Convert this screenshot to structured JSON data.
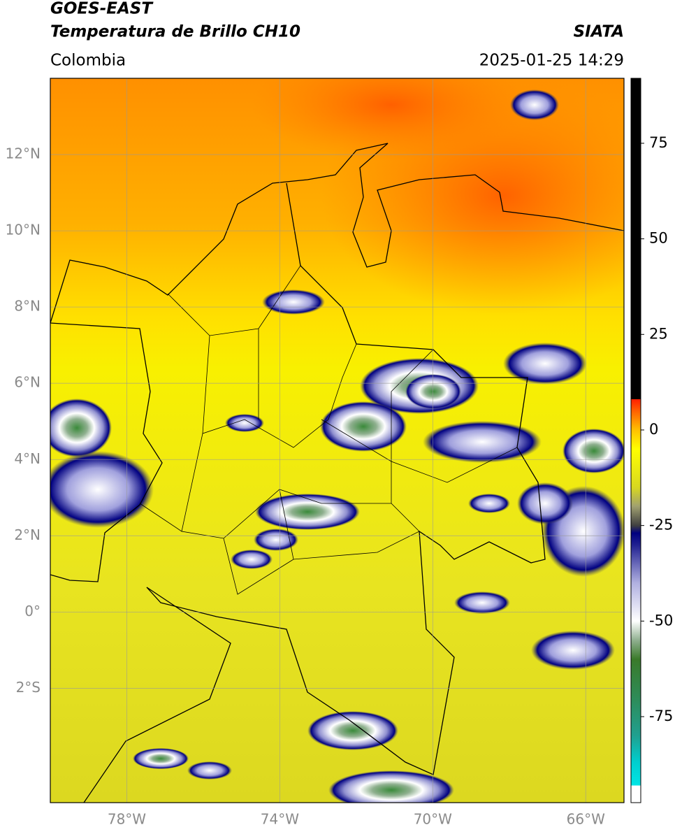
{
  "header": {
    "title": "GOES-EAST",
    "subtitle": "Temperatura de Brillo CH10",
    "source": "SIATA",
    "region": "Colombia",
    "datetime": "2025-01-25 14:29"
  },
  "map": {
    "xlim": [
      -80,
      -65
    ],
    "ylim": [
      -5,
      14
    ],
    "xticks": [
      {
        "value": -78,
        "label": "78°W"
      },
      {
        "value": -74,
        "label": "74°W"
      },
      {
        "value": -70,
        "label": "70°W"
      },
      {
        "value": -66,
        "label": "66°W"
      }
    ],
    "yticks": [
      {
        "value": 12,
        "label": "12°N"
      },
      {
        "value": 10,
        "label": "10°N"
      },
      {
        "value": 8,
        "label": "8°N"
      },
      {
        "value": 6,
        "label": "6°N"
      },
      {
        "value": 4,
        "label": "4°N"
      },
      {
        "value": 2,
        "label": "2°N"
      },
      {
        "value": 0,
        "label": "0°"
      },
      {
        "value": -2,
        "label": "2°S"
      }
    ],
    "grid": true
  },
  "colorbar": {
    "lim": [
      -97.5,
      92
    ],
    "ticks": [
      75,
      50,
      25,
      0,
      -25,
      -50,
      -75
    ],
    "stops": [
      {
        "value": -97.5,
        "color": "#ffffff"
      },
      {
        "value": -93,
        "color": "#ffffff"
      },
      {
        "value": -93,
        "color": "#00e5e5"
      },
      {
        "value": -87,
        "color": "#00cfcf"
      },
      {
        "value": -80,
        "color": "#20a090"
      },
      {
        "value": -70,
        "color": "#2e8b57"
      },
      {
        "value": -60,
        "color": "#3a7a2a"
      },
      {
        "value": -55,
        "color": "#90b090"
      },
      {
        "value": -50,
        "color": "#ffffff"
      },
      {
        "value": -40,
        "color": "#b0b0e0"
      },
      {
        "value": -30,
        "color": "#202090"
      },
      {
        "value": -27,
        "color": "#000080"
      },
      {
        "value": -25,
        "color": "#404040"
      },
      {
        "value": -20,
        "color": "#a0a070"
      },
      {
        "value": -15,
        "color": "#d8d820"
      },
      {
        "value": -5,
        "color": "#ffff00"
      },
      {
        "value": 0,
        "color": "#ffc000"
      },
      {
        "value": 5,
        "color": "#ff6000"
      },
      {
        "value": 8,
        "color": "#ff2000"
      },
      {
        "value": 8,
        "color": "#000000"
      },
      {
        "value": 92,
        "color": "#000000"
      }
    ]
  }
}
